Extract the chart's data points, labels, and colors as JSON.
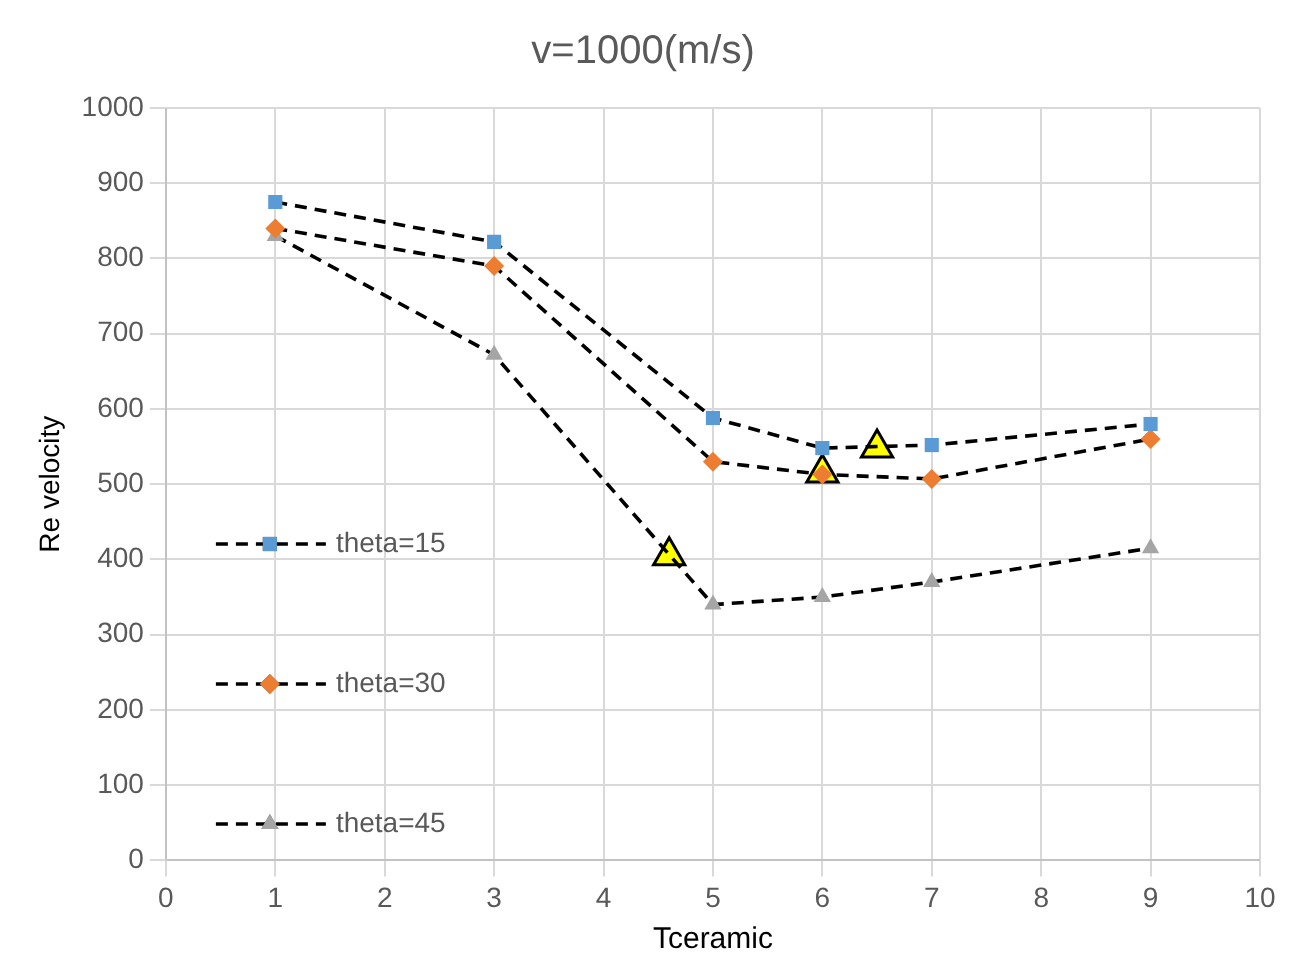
{
  "chart_data": {
    "type": "line",
    "title": "v=1000(m/s)",
    "xlabel": "Tceramic",
    "ylabel": "Re velocity",
    "xlim": [
      0,
      10
    ],
    "xticks": [
      0,
      1,
      2,
      3,
      4,
      5,
      6,
      7,
      8,
      9,
      10
    ],
    "ylim": [
      0,
      1000
    ],
    "yticks": [
      0,
      100,
      200,
      300,
      400,
      500,
      600,
      700,
      800,
      900,
      1000
    ],
    "grid": true,
    "legend": "left",
    "line_style": "dashed",
    "series": [
      {
        "name": "theta=15",
        "color": "#5b9bd5",
        "marker": "square",
        "x": [
          1,
          3,
          5,
          6,
          7,
          9
        ],
        "values": [
          875,
          822,
          588,
          548,
          552,
          580
        ]
      },
      {
        "name": "theta=30",
        "color": "#ed7d31",
        "marker": "diamond",
        "x": [
          1,
          3,
          5,
          6,
          7,
          9
        ],
        "values": [
          840,
          790,
          530,
          513,
          507,
          560
        ]
      },
      {
        "name": "theta=45",
        "color": "#a5a5a5",
        "marker": "triangle",
        "x": [
          1,
          3,
          5,
          6,
          7,
          9
        ],
        "values": [
          830,
          672,
          340,
          350,
          370,
          415
        ]
      },
      {
        "type": "scatter",
        "color": "#ffff00",
        "marker": "triangle",
        "x": [
          4.6,
          6,
          6.5
        ],
        "values": [
          405,
          515,
          548
        ]
      }
    ]
  }
}
